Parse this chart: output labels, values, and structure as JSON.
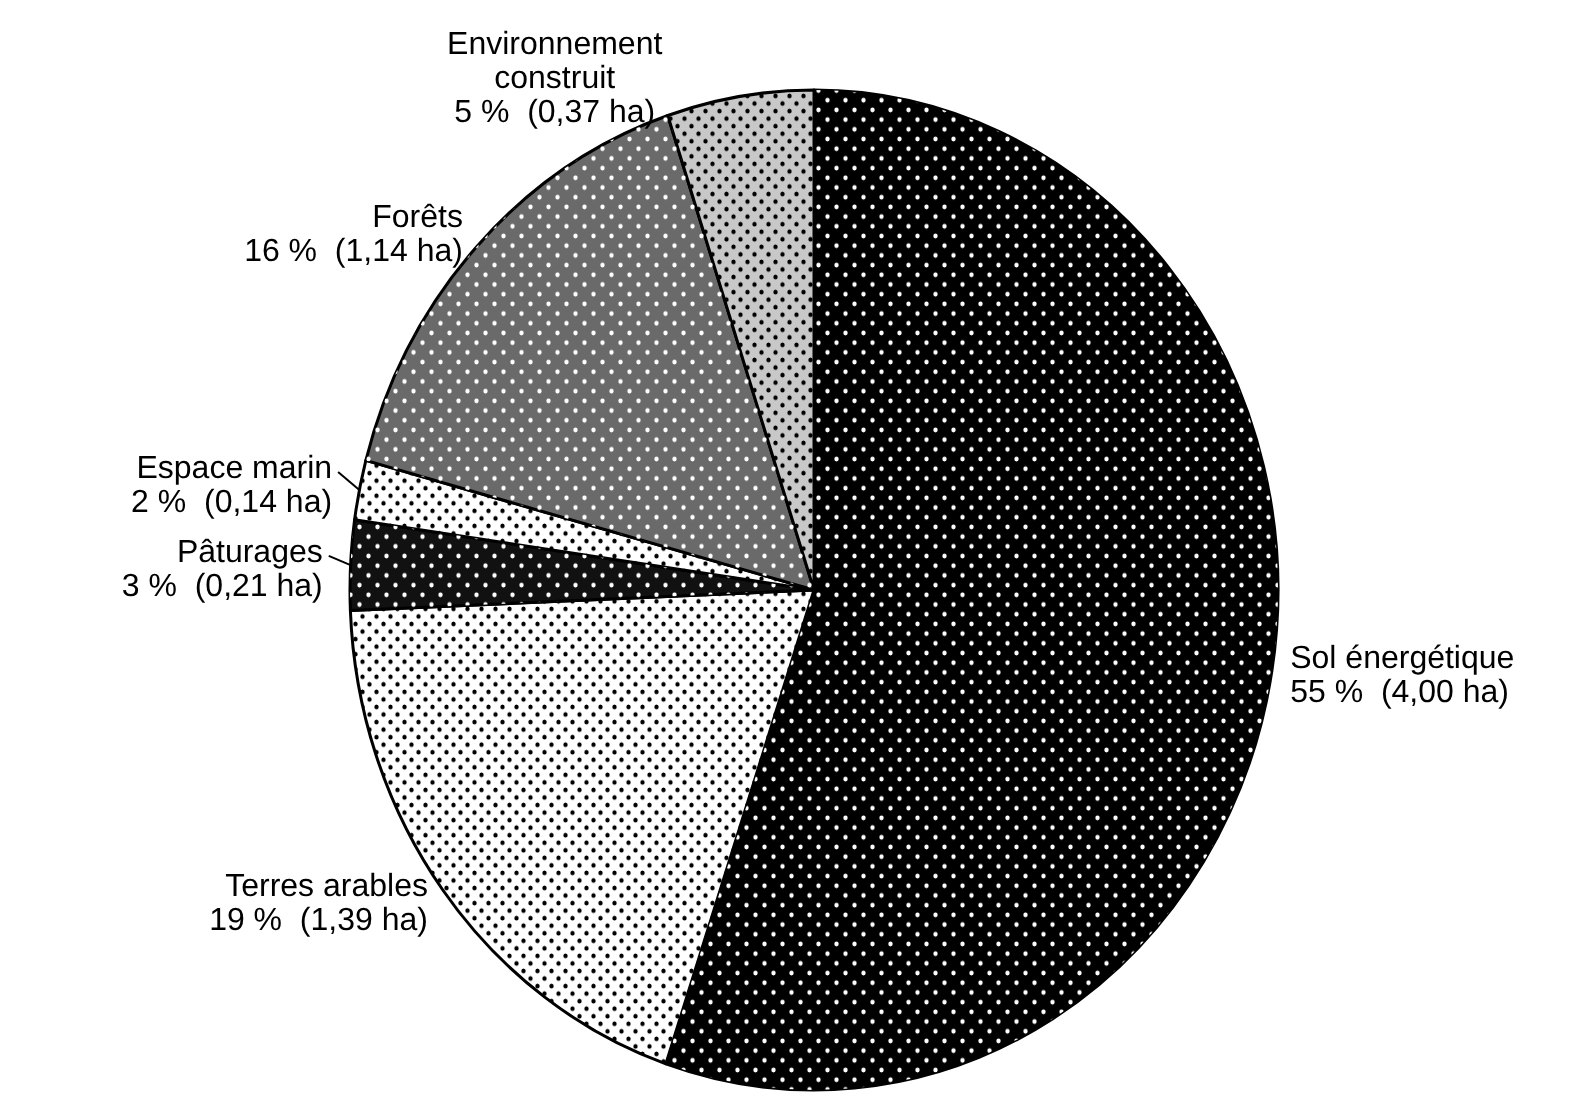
{
  "chart_data": {
    "type": "pie",
    "categories": [
      "Sol énergétique",
      "Terres arables",
      "Pâturages",
      "Espace marin",
      "Forêts",
      "Environnement construit"
    ],
    "values": [
      4.0,
      1.39,
      0.21,
      0.14,
      1.14,
      0.37
    ],
    "value_labels": [
      "55 %  (4,00 ha)",
      "19 %  (1,39 ha)",
      "3 %  (0,21 ha)",
      "2 %  (0,14 ha)",
      "16 %  (1,14 ha)",
      "5 %  (0,37 ha)"
    ],
    "colors": [
      "#000000",
      "#ffffff",
      "#111111",
      "#ffffff",
      "#6a6a6a",
      "#c8c8c8"
    ]
  }
}
